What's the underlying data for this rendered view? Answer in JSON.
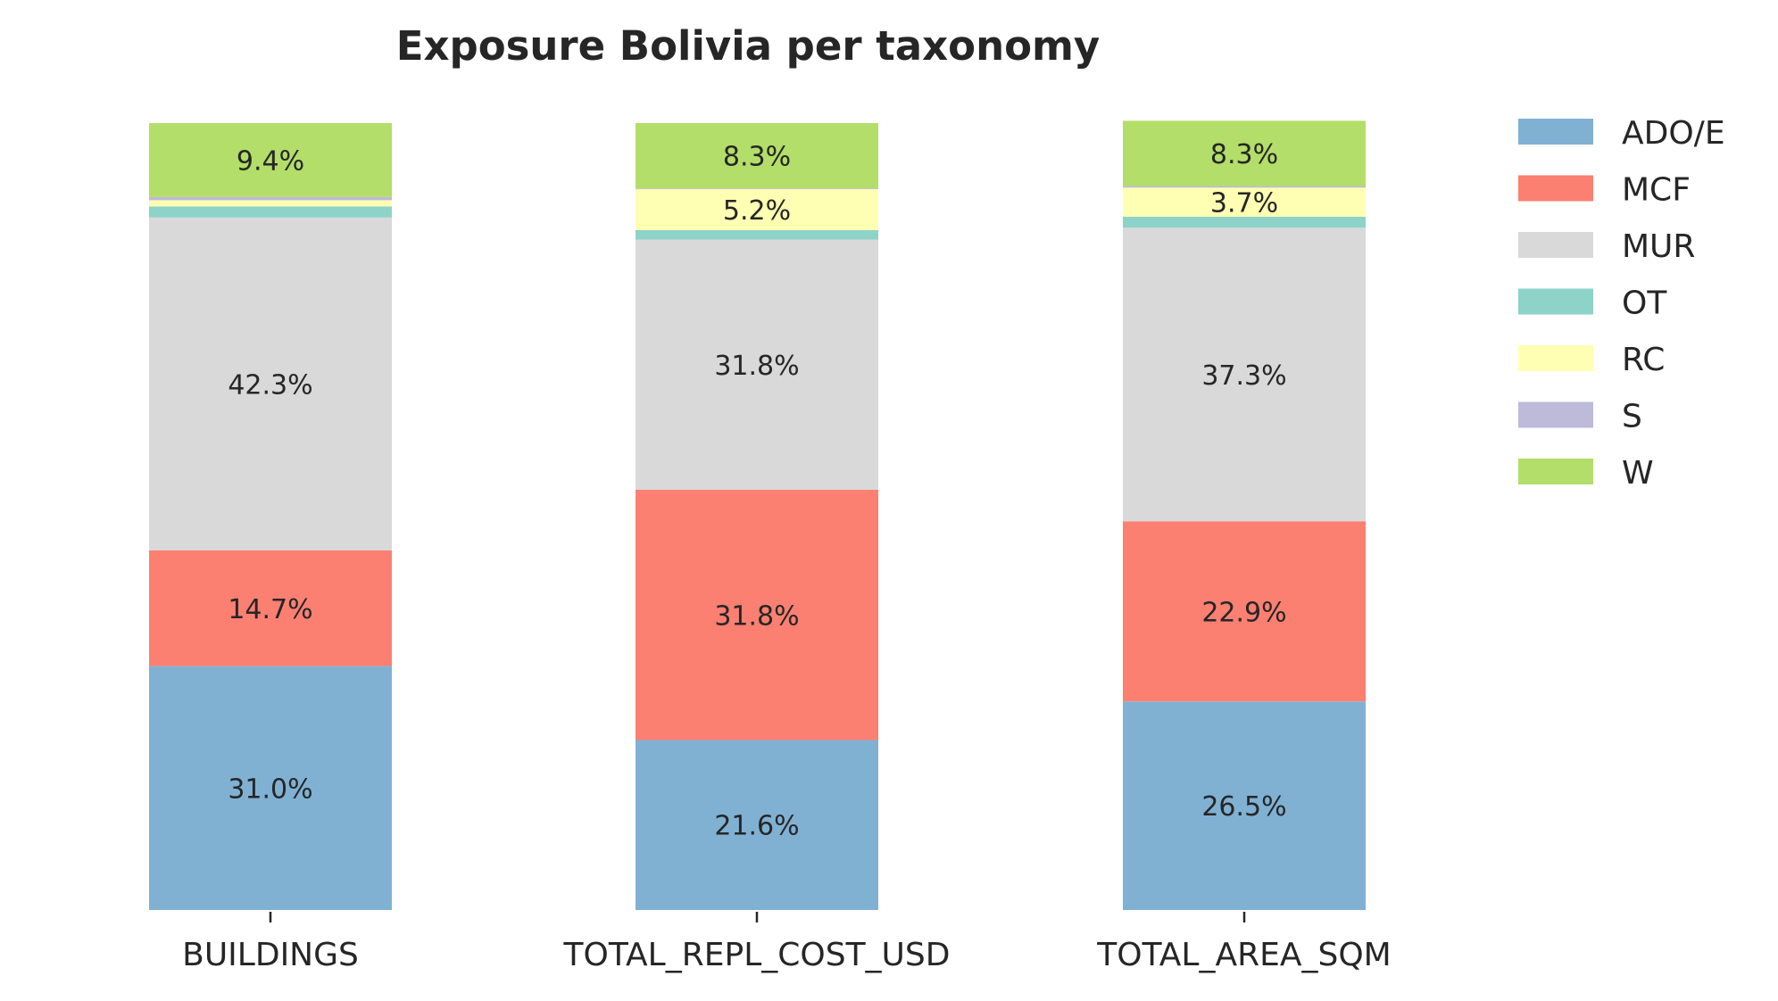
{
  "chart_data": {
    "type": "bar",
    "stacked": true,
    "normalized": true,
    "title": "Exposure Bolivia per taxonomy",
    "xlabel": "",
    "ylabel": "",
    "ylim": [
      0,
      1
    ],
    "grid": false,
    "legend_position": "right",
    "categories": [
      "BUILDINGS",
      "TOTAL_REPL_COST_USD",
      "TOTAL_AREA_SQM"
    ],
    "series": [
      {
        "name": "ADO/E",
        "color": "#80b1d3",
        "values": [
          0.31,
          0.216,
          0.265
        ]
      },
      {
        "name": "MCF",
        "color": "#fb8072",
        "values": [
          0.147,
          0.318,
          0.229
        ]
      },
      {
        "name": "MUR",
        "color": "#d9d9d9",
        "values": [
          0.423,
          0.318,
          0.373
        ]
      },
      {
        "name": "OT",
        "color": "#8dd3c7",
        "values": [
          0.014,
          0.012,
          0.014
        ]
      },
      {
        "name": "RC",
        "color": "#ffffb3",
        "values": [
          0.008,
          0.052,
          0.037
        ]
      },
      {
        "name": "S",
        "color": "#bebada",
        "values": [
          0.004,
          0.001,
          0.002
        ]
      },
      {
        "name": "W",
        "color": "#b3de69",
        "values": [
          0.094,
          0.083,
          0.083
        ]
      }
    ],
    "data_labels": [
      [
        "31.0%",
        "14.7%",
        "42.3%",
        "",
        "",
        "",
        "9.4%"
      ],
      [
        "21.6%",
        "31.8%",
        "31.8%",
        "",
        "5.2%",
        "",
        "8.3%"
      ],
      [
        "26.5%",
        "22.9%",
        "37.3%",
        "",
        "3.7%",
        "",
        "8.3%"
      ]
    ]
  }
}
